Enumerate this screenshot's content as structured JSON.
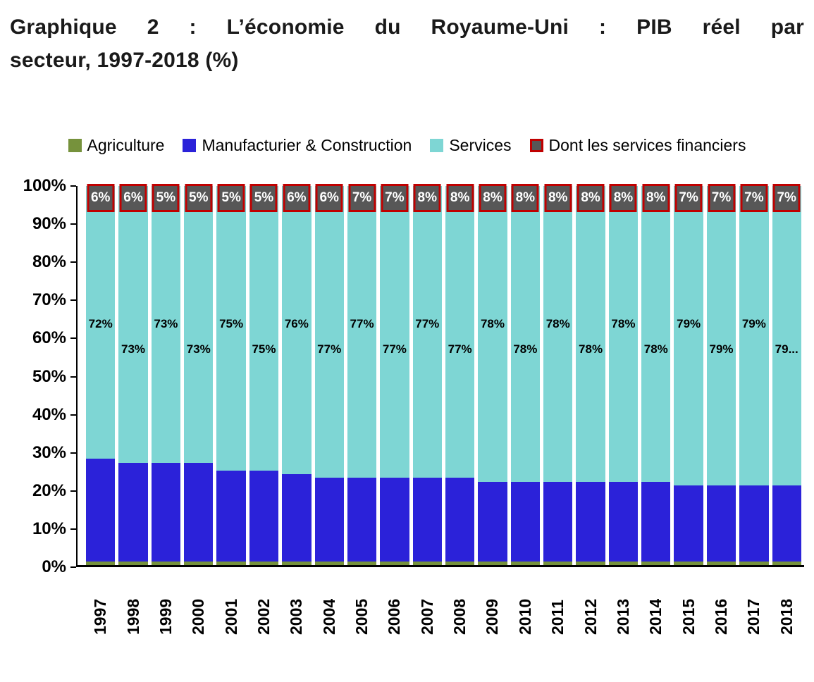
{
  "title": {
    "line1": "Graphique 2 : L’économie du Royaume-Uni : PIB réel par",
    "line2": "secteur, 1997-2018 (%)"
  },
  "chart_data": {
    "type": "bar",
    "stacked": true,
    "title": "Graphique 2 : L’économie du Royaume-Uni : PIB réel par secteur, 1997-2018 (%)",
    "legend_position": "top",
    "grid": false,
    "ylim": [
      0,
      100
    ],
    "yticks": [
      100,
      90,
      80,
      70,
      60,
      50,
      40,
      30,
      20,
      10,
      0
    ],
    "ytick_labels": [
      "100%",
      "90%",
      "80%",
      "70%",
      "60%",
      "50%",
      "40%",
      "30%",
      "20%",
      "10%",
      "0%"
    ],
    "categories": [
      "1997",
      "1998",
      "1999",
      "2000",
      "2001",
      "2002",
      "2003",
      "2004",
      "2005",
      "2006",
      "2007",
      "2008",
      "2009",
      "2010",
      "2011",
      "2012",
      "2013",
      "2014",
      "2015",
      "2016",
      "2017",
      "2018"
    ],
    "series": [
      {
        "name": "Agriculture",
        "color": "#76923C",
        "values": [
          1,
          1,
          1,
          1,
          1,
          1,
          1,
          1,
          1,
          1,
          1,
          1,
          1,
          1,
          1,
          1,
          1,
          1,
          1,
          1,
          1,
          1
        ]
      },
      {
        "name": "Manufacturier & Construction",
        "color": "#2B22D9",
        "values": [
          27,
          26,
          26,
          26,
          24,
          24,
          23,
          22,
          22,
          22,
          22,
          22,
          21,
          21,
          21,
          21,
          21,
          21,
          20,
          20,
          20,
          20
        ]
      },
      {
        "name": "Services",
        "color": "#7ED6D4",
        "values": [
          72,
          73,
          73,
          73,
          75,
          75,
          76,
          77,
          77,
          77,
          77,
          77,
          78,
          78,
          78,
          78,
          78,
          78,
          79,
          79,
          79,
          79
        ],
        "labels": [
          "72%",
          "73%",
          "73%",
          "73%",
          "75%",
          "75%",
          "76%",
          "77%",
          "77%",
          "77%",
          "77%",
          "77%",
          "78%",
          "78%",
          "78%",
          "78%",
          "78%",
          "78%",
          "79%",
          "79%",
          "79%",
          "79..."
        ]
      },
      {
        "name": "Dont les services financiers",
        "color": "#575757",
        "border": "#C00000",
        "values": [
          6,
          6,
          5,
          5,
          5,
          5,
          6,
          6,
          7,
          7,
          8,
          8,
          8,
          8,
          8,
          8,
          8,
          8,
          7,
          7,
          7,
          7
        ],
        "labels": [
          "6%",
          "6%",
          "5%",
          "5%",
          "5%",
          "5%",
          "6%",
          "6%",
          "7%",
          "7%",
          "8%",
          "8%",
          "8%",
          "8%",
          "8%",
          "8%",
          "8%",
          "8%",
          "7%",
          "7%",
          "7%",
          "7%"
        ]
      }
    ]
  }
}
